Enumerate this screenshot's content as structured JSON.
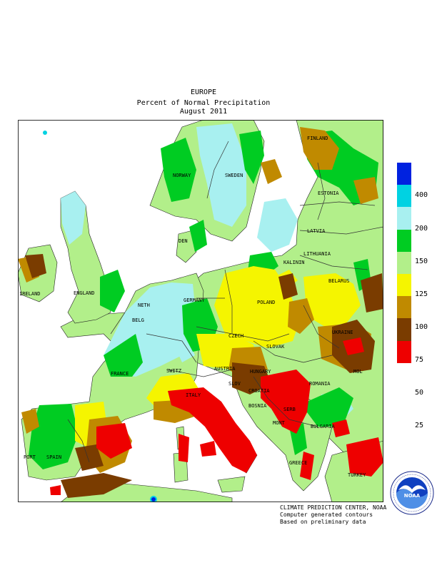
{
  "title": {
    "line1": "EUROPE",
    "line2": "Percent of Normal Precipitation",
    "line3": "August 2011"
  },
  "legend": {
    "ticks": [
      "400",
      "200",
      "150",
      "125",
      "100",
      "75",
      "50",
      "25"
    ],
    "colors": [
      "#0022e0",
      "#00d2e2",
      "#a8f0f0",
      "#00cc22",
      "#b2ef8a",
      "#f5f500",
      "#c08a00",
      "#7a3c00",
      "#ee0000"
    ]
  },
  "credits": {
    "line1": "CLIMATE PREDICTION CENTER, NOAA",
    "line2": "Computer generated contours",
    "line3": "Based on preliminary data"
  },
  "logo": {
    "text": "NOAA",
    "ring_text": "NATIONAL OCEANIC AND ATMOSPHERIC ADMINISTRATION · U.S. DEPARTMENT OF COMMERCE"
  },
  "countries": {
    "finland": "FINLAND",
    "norway": "NORWAY",
    "sweden": "SWEDEN",
    "estonia": "ESTONIA",
    "latvia": "LATVIA",
    "lithuania": "LITHUANIA",
    "belarus": "BELARUS",
    "poland": "POLAND",
    "germany": "GERMANY",
    "ireland": "IRELAND",
    "england": "ENGLAND",
    "neth": "NETH",
    "belg": "BELG",
    "france": "FRANCE",
    "switz": "SWITZ",
    "austria": "AUSTRIA",
    "czech": "CZECH",
    "slovak": "SLOVAK",
    "hungary": "HUNGARY",
    "ukraine": "UKRAINE",
    "mol": "MOL",
    "romania": "ROMANIA",
    "slov": "SLOV",
    "croatia": "CROATIA",
    "bosnia": "BOSNIA",
    "serb": "SERB",
    "bulgaria": "BULGARIA",
    "mont": "MONT",
    "italy": "ITALY",
    "port": "PORT",
    "spain": "SPAIN",
    "greece": "GREECE",
    "turkey": "TURKEY",
    "den": "DEN",
    "kalinin": "KALININ"
  }
}
